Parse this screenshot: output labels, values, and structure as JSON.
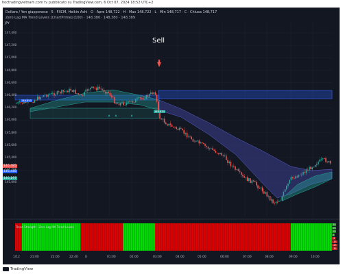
{
  "topbar": {
    "text": "hoctradingvietnam.com tv pubblicato su TradingView.com, 6 Oct 07, 2024 18:52 UTC+2"
  },
  "chart_header": {
    "symbol_line": "Dollaro / Yen giapponese · 5 · FXCM, Heikin Ashi · O · Apre 148,722 · H · Max 148,722 · L · Min 148,717 · C · Chiusa 148,717",
    "indicator_line": "Zero Lag MA Trend Levels [ChartPrime] (100) · 148,386 · 148,380 · 148,389",
    "symbol_tag": "JPY"
  },
  "annotation": {
    "sell": "Sell"
  },
  "price_axis": [
    "147,400",
    "147,200",
    "147,000",
    "146,800",
    "146,600",
    "146,400",
    "146,200",
    "146,000",
    "145,800",
    "145,600",
    "145,400",
    "145,200",
    "145,000"
  ],
  "price_tags": {
    "red": "146,485",
    "blue": "146,448",
    "green": "146,197",
    "level1": "146,850",
    "level2": "146,674"
  },
  "time_axis": [
    "1/12",
    "21:00",
    "22:00",
    "22:40",
    "8",
    "01:00",
    "02:00",
    "03:00",
    "04:00",
    "05:00",
    "06:00",
    "07:00",
    "08:00",
    "09:00",
    "10:00"
  ],
  "sub_indicator": {
    "label": "Trend Strength · Zero Lag MA Trend Levels",
    "scale": [
      "35",
      "25",
      "15",
      "5",
      "-5",
      "-15",
      "-25",
      "-35"
    ]
  },
  "colors": {
    "bg": "#131722",
    "bull": "#26a69a",
    "bear": "#ef5350",
    "bull_bright": "#00e600",
    "bear_bright": "#e60000",
    "band": "#3b3f8f",
    "grid": "#1e222d"
  },
  "footer": {
    "brand": "TradingView"
  }
}
